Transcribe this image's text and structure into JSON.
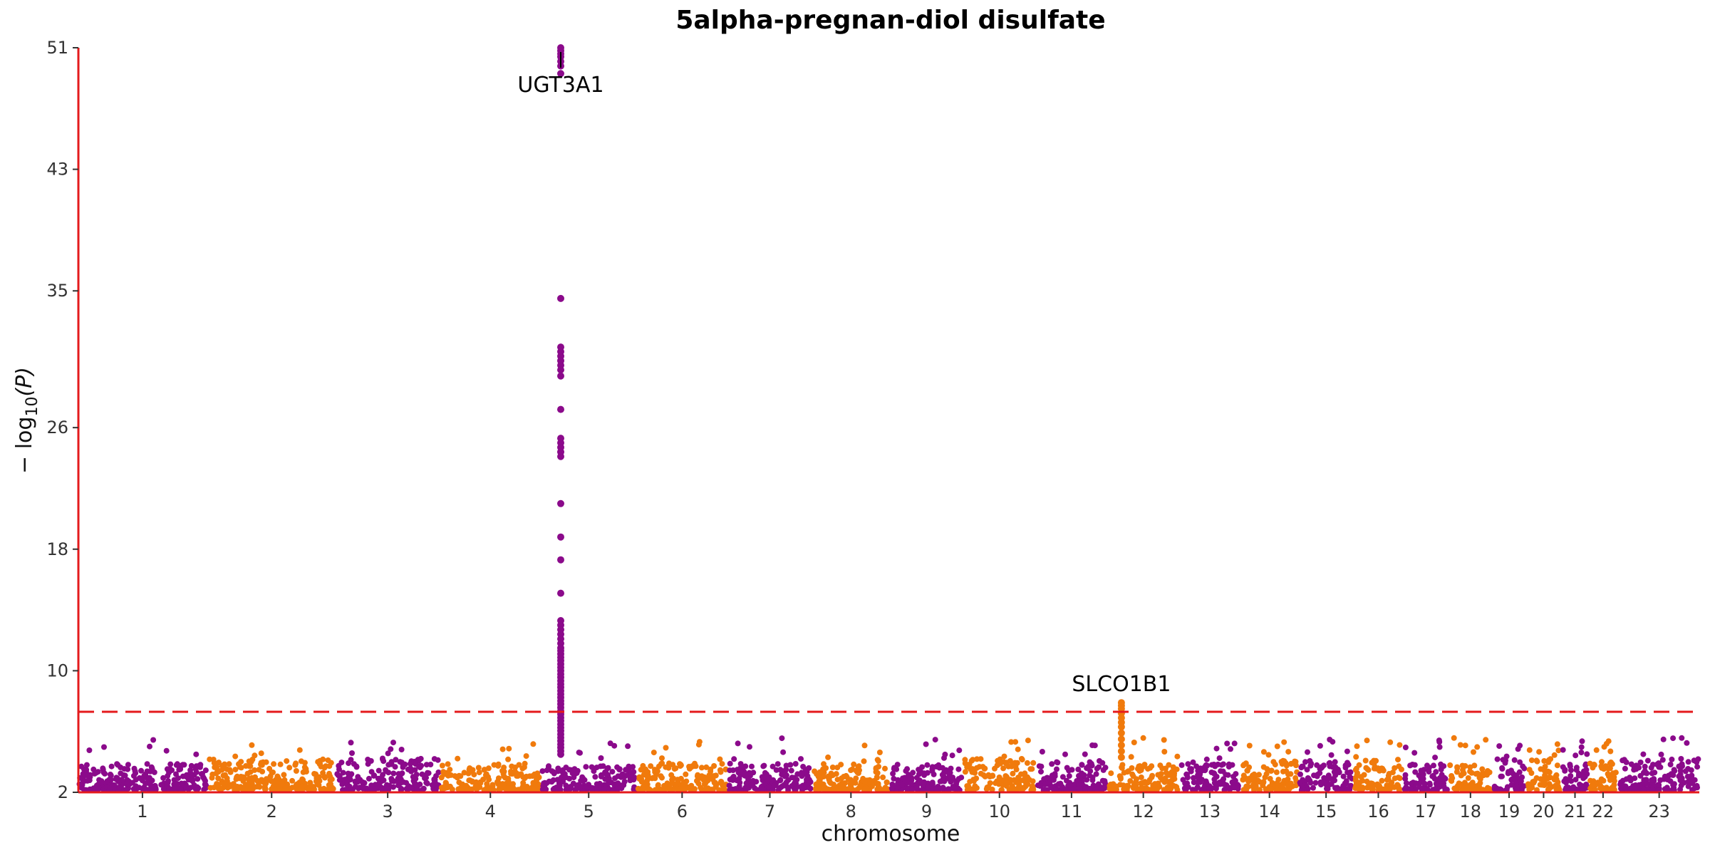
{
  "chart_data": {
    "type": "scatter",
    "title": "5alpha-pregnan-diol disulfate",
    "xlabel": "chromosome",
    "ylabel_prefix": "− log",
    "ylabel_sub": "10",
    "ylabel_suffix": "(P)",
    "ylim": [
      2,
      51
    ],
    "yticks": [
      "2",
      "10",
      "18",
      "26",
      "35",
      "43",
      "51"
    ],
    "chromosomes": [
      "1",
      "2",
      "3",
      "4",
      "5",
      "6",
      "7",
      "8",
      "9",
      "10",
      "11",
      "12",
      "13",
      "14",
      "15",
      "16",
      "17",
      "18",
      "19",
      "20",
      "21",
      "22",
      "23"
    ],
    "chromosome_sizes_mb": [
      249,
      242,
      198,
      190,
      181,
      171,
      159,
      145,
      138,
      134,
      135,
      133,
      114,
      107,
      102,
      90,
      83,
      80,
      59,
      64,
      47,
      51,
      156
    ],
    "colors": {
      "purple": "#8b0a8b",
      "orange": "#f07a0c",
      "axis": "#e41a1c",
      "threshold": "#e41a1c"
    },
    "color_pattern": [
      "purple",
      "orange",
      "purple",
      "orange",
      "purple",
      "orange",
      "purple",
      "orange",
      "purple",
      "orange",
      "purple",
      "orange",
      "purple",
      "orange",
      "purple",
      "orange",
      "purple",
      "orange",
      "purple",
      "orange",
      "purple",
      "orange",
      "purple"
    ],
    "threshold_y": 7.3,
    "annotations": [
      {
        "label": "UGT3A1",
        "chromosome": "5",
        "y": 51
      },
      {
        "label": "SLCO1B1",
        "chromosome": "12",
        "y": 7.9
      }
    ]
  }
}
